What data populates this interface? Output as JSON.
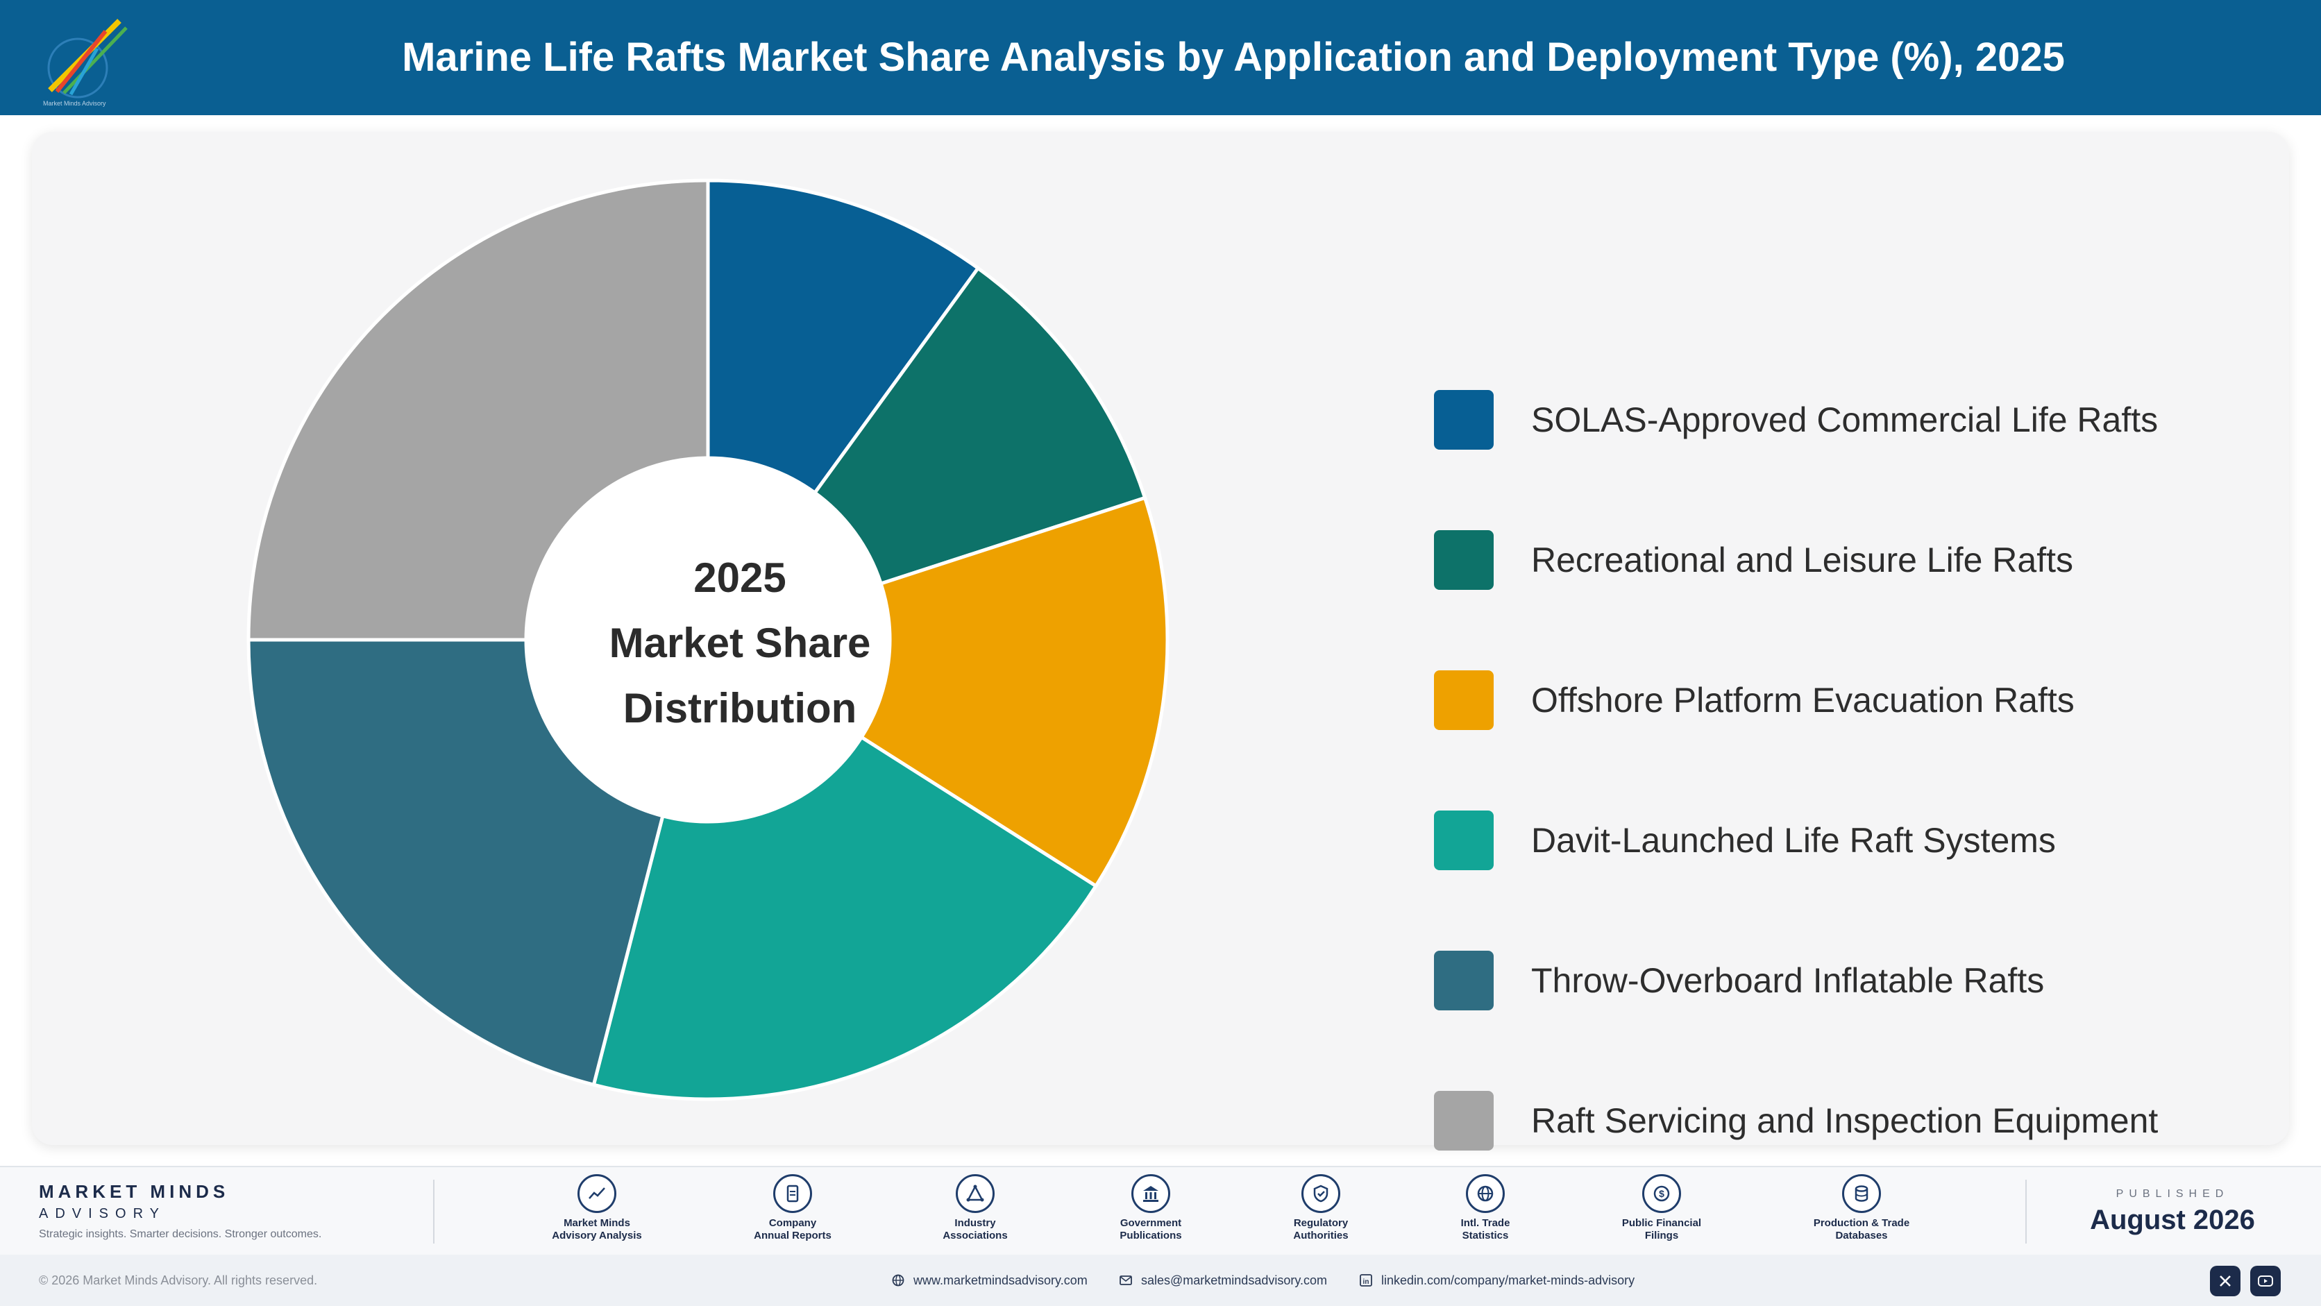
{
  "header": {
    "title": "Marine Life Rafts Market Share Analysis by Application and Deployment Type (%), 2025"
  },
  "chart_data": {
    "type": "pie",
    "center_label": [
      "2025",
      "Market Share",
      "Distribution"
    ],
    "categories": [
      "SOLAS-Approved Commercial Life Rafts",
      "Recreational and Leisure Life Rafts",
      "Offshore Platform Evacuation Rafts",
      "Davit-Launched Life Raft Systems",
      "Throw-Overboard Inflatable Rafts",
      "Raft Servicing and Inspection Equipment"
    ],
    "values": [
      10,
      10,
      14,
      20,
      21,
      25
    ],
    "colors": [
      "#075f94",
      "#0d7269",
      "#eea100",
      "#12a596",
      "#2f6d82",
      "#a5a5a5"
    ]
  },
  "footer": {
    "brand_name": "MARKET MINDS",
    "brand_sub": "ADVISORY",
    "brand_tagline": "Strategic insights. Smarter decisions. Stronger outcomes.",
    "sources": [
      {
        "icon": "chart-line-icon",
        "line1": "Market Minds",
        "line2": "Advisory Analysis"
      },
      {
        "icon": "document-icon",
        "line1": "Company",
        "line2": "Annual Reports"
      },
      {
        "icon": "network-icon",
        "line1": "Industry",
        "line2": "Associations"
      },
      {
        "icon": "government-building-icon",
        "line1": "Government",
        "line2": "Publications"
      },
      {
        "icon": "shield-check-icon",
        "line1": "Regulatory",
        "line2": "Authorities"
      },
      {
        "icon": "globe-icon",
        "line1": "Intl. Trade",
        "line2": "Statistics"
      },
      {
        "icon": "dollar-coin-icon",
        "line1": "Public Financial",
        "line2": "Filings"
      },
      {
        "icon": "database-icon",
        "line1": "Production & Trade",
        "line2": "Databases"
      }
    ],
    "published_caption": "PUBLISHED",
    "published_date": "August 2026",
    "copyright": "© 2026 Market Minds Advisory. All rights reserved.",
    "website": "www.marketmindsadvisory.com",
    "email": "sales@marketmindsadvisory.com",
    "linkedin": "linkedin.com/company/market-minds-advisory"
  }
}
